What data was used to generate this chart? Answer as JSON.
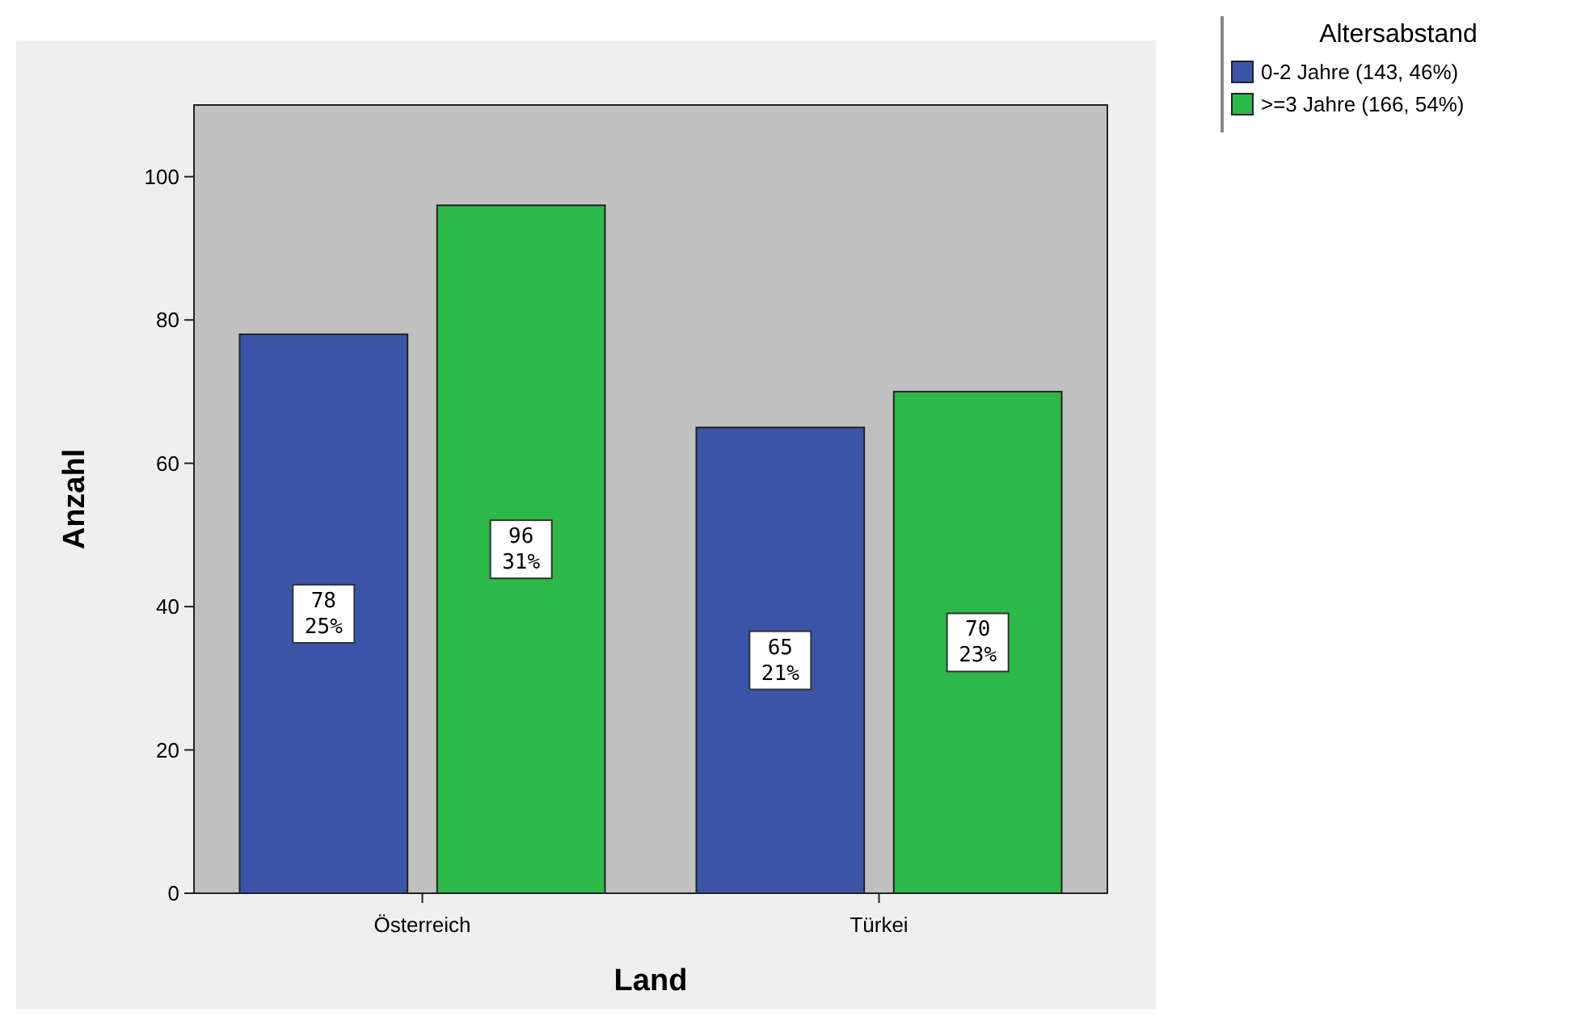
{
  "chart_data": {
    "type": "bar",
    "xlabel": "Land",
    "ylabel": "Anzahl",
    "legend_title": "Altersabstand",
    "legend": "top right",
    "categories": [
      "Österreich",
      "Türkei"
    ],
    "series": [
      {
        "name": "0-2 Jahre (143, 46%)",
        "color": "#3a55a8",
        "values": [
          78,
          65
        ],
        "value_labels": [
          "78\n25%",
          "65\n21%"
        ]
      },
      {
        "name": ">=3 Jahre (166, 54%)",
        "color": "#2db84a",
        "values": [
          96,
          70
        ],
        "value_labels": [
          "96\n31%",
          "70\n23%"
        ]
      }
    ],
    "ylim": [
      0,
      110
    ],
    "yticks": [
      0,
      20,
      40,
      60,
      80,
      100
    ]
  }
}
